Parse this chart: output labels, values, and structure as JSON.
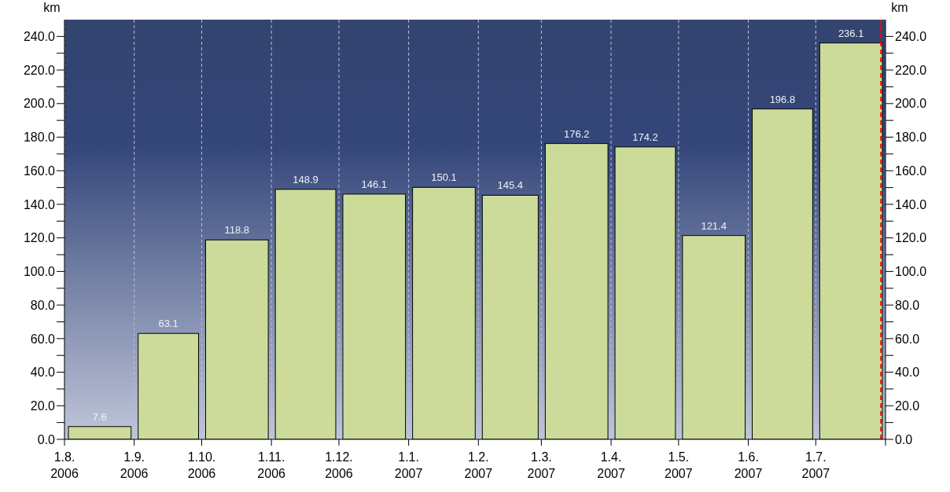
{
  "chart_data": {
    "type": "bar",
    "x": [
      "2006-08-16",
      "2006-09-16",
      "2006-10-16",
      "2006-11-16",
      "2006-12-16",
      "2007-01-16",
      "2007-02-15",
      "2007-03-16",
      "2007-04-16",
      "2007-05-16",
      "2007-06-16",
      "2007-07-16"
    ],
    "values": [
      7.6,
      63.1,
      118.8,
      148.9,
      146.1,
      150.1,
      145.4,
      176.2,
      174.2,
      121.4,
      196.8,
      236.1
    ],
    "color": "#ccdb9a",
    "data_labels": true,
    "ylabel": "km",
    "y2label": "km",
    "xlim": [
      "2006-08",
      "2007-08"
    ],
    "xticks": [
      {
        "value": "2006-08",
        "label": "1.8. 2006"
      },
      {
        "value": "2006-09",
        "label": "1.9. 2006"
      },
      {
        "value": "2006-10",
        "label": "1.10. 2006"
      },
      {
        "value": "2006-11",
        "label": "1.11. 2006"
      },
      {
        "value": "2006-12",
        "label": "1.12. 2006"
      },
      {
        "value": "2007-01",
        "label": "1.1. 2007"
      },
      {
        "value": "2007-02",
        "label": "1.2. 2007"
      },
      {
        "value": "2007-03",
        "label": "1.3. 2007"
      },
      {
        "value": "2007-04",
        "label": "1.4. 2007"
      },
      {
        "value": "2007-05",
        "label": "1.5. 2007"
      },
      {
        "value": "2007-06",
        "label": "1.6. 2007"
      },
      {
        "value": "2007-07",
        "label": "1.7. 2007"
      },
      {
        "value": "2007-08",
        "label": null
      }
    ],
    "ylim": [
      0,
      250
    ],
    "yticks": [
      {
        "value": 0,
        "label": "0.0"
      },
      {
        "value": 10,
        "label": null
      },
      {
        "value": 20,
        "label": "20.0"
      },
      {
        "value": 30,
        "label": null
      },
      {
        "value": 40,
        "label": "40.0"
      },
      {
        "value": 50,
        "label": null
      },
      {
        "value": 60,
        "label": "60.0"
      },
      {
        "value": 70,
        "label": null
      },
      {
        "value": 80,
        "label": "80.0"
      },
      {
        "value": 90,
        "label": null
      },
      {
        "value": 100,
        "label": "100.0"
      },
      {
        "value": 110,
        "label": null
      },
      {
        "value": 120,
        "label": "120.0"
      },
      {
        "value": 130,
        "label": null
      },
      {
        "value": 140,
        "label": "140.0"
      },
      {
        "value": 150,
        "label": null
      },
      {
        "value": 160,
        "label": "160.0"
      },
      {
        "value": 170,
        "label": null
      },
      {
        "value": 180,
        "label": "180.0"
      },
      {
        "value": 190,
        "label": null
      },
      {
        "value": 200,
        "label": "200.0"
      },
      {
        "value": 210,
        "label": null
      },
      {
        "value": 220,
        "label": "220.0"
      },
      {
        "value": 230,
        "label": null
      },
      {
        "value": 240,
        "label": "240.0"
      }
    ],
    "y2lim": [
      0,
      250
    ],
    "y2ticks": [
      {
        "value": 0,
        "label": "0.0"
      },
      {
        "value": 10,
        "label": null
      },
      {
        "value": 20,
        "label": "20.0"
      },
      {
        "value": 30,
        "label": null
      },
      {
        "value": 40,
        "label": "40.0"
      },
      {
        "value": 50,
        "label": null
      },
      {
        "value": 60,
        "label": "60.0"
      },
      {
        "value": 70,
        "label": null
      },
      {
        "value": 80,
        "label": "80.0"
      },
      {
        "value": 90,
        "label": null
      },
      {
        "value": 100,
        "label": "100.0"
      },
      {
        "value": 110,
        "label": null
      },
      {
        "value": 120,
        "label": "120.0"
      },
      {
        "value": 130,
        "label": null
      },
      {
        "value": 140,
        "label": "140.0"
      },
      {
        "value": 150,
        "label": null
      },
      {
        "value": 160,
        "label": "160.0"
      },
      {
        "value": 170,
        "label": null
      },
      {
        "value": 180,
        "label": "180.0"
      },
      {
        "value": 190,
        "label": null
      },
      {
        "value": 200,
        "label": "200.0"
      },
      {
        "value": 210,
        "label": null
      },
      {
        "value": 220,
        "label": "220.0"
      },
      {
        "value": 230,
        "label": null
      },
      {
        "value": 240,
        "label": "240.0"
      }
    ],
    "grid": true,
    "ref_lines": [
      {
        "axis": "x",
        "value": "2007-07-30",
        "color": "#ff0000",
        "line_style": "dashed"
      }
    ]
  }
}
